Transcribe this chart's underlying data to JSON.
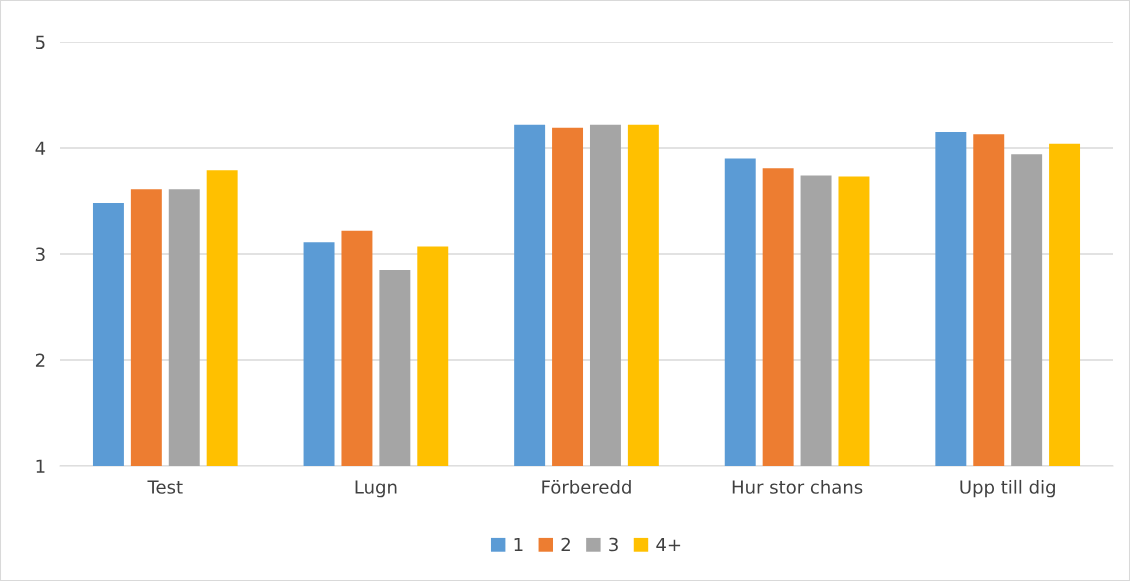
{
  "chart_data": {
    "type": "bar",
    "categories": [
      "Test",
      "Lugn",
      "Förberedd",
      "Hur stor chans",
      "Upp till dig"
    ],
    "series": [
      {
        "name": "1",
        "color": "#5b9bd5",
        "values": [
          3.48,
          3.11,
          4.22,
          3.9,
          4.15
        ]
      },
      {
        "name": "2",
        "color": "#ed7d31",
        "values": [
          3.61,
          3.22,
          4.19,
          3.81,
          4.13
        ]
      },
      {
        "name": "3",
        "color": "#a5a5a5",
        "values": [
          3.61,
          2.85,
          4.22,
          3.74,
          3.94
        ]
      },
      {
        "name": "4+",
        "color": "#ffc000",
        "values": [
          3.79,
          3.07,
          4.22,
          3.73,
          4.04
        ]
      }
    ],
    "ylim": [
      1,
      5
    ],
    "yticks": [
      1,
      2,
      3,
      4,
      5
    ],
    "grid": "y",
    "legend": "bottom"
  }
}
